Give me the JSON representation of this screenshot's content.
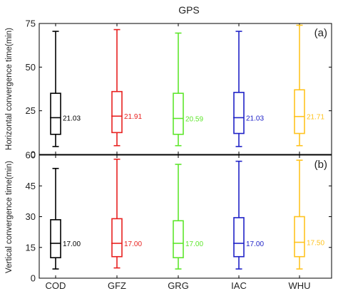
{
  "figure": {
    "title": "GPS"
  },
  "chart_data": [
    {
      "type": "box",
      "panel_label": "(a)",
      "ylabel": "Horizontal convergence time(min)",
      "xlabel": "",
      "ylim": [
        0,
        75
      ],
      "yticks": [
        0,
        25,
        50,
        75
      ],
      "grid": false,
      "legend": "none",
      "categories": [
        "COD",
        "GFZ",
        "GRG",
        "IAC",
        "WHU"
      ],
      "colors": [
        "#000000",
        "#e8211f",
        "#5ee62c",
        "#1f22c7",
        "#ffc31f"
      ],
      "boxes": [
        {
          "whisker_low": 4.5,
          "q1": 11.5,
          "median": 21.03,
          "q3": 35,
          "whisker_high": 70.5,
          "label": "21.03"
        },
        {
          "whisker_low": 5,
          "q1": 12.5,
          "median": 21.91,
          "q3": 36,
          "whisker_high": 71.5,
          "label": "21.91"
        },
        {
          "whisker_low": 5,
          "q1": 11.5,
          "median": 20.59,
          "q3": 35,
          "whisker_high": 69.5,
          "label": "20.59"
        },
        {
          "whisker_low": 4.5,
          "q1": 12,
          "median": 21.03,
          "q3": 35.5,
          "whisker_high": 70.5,
          "label": "21.03"
        },
        {
          "whisker_low": 5,
          "q1": 12,
          "median": 21.71,
          "q3": 37,
          "whisker_high": 74,
          "label": "21.71"
        }
      ]
    },
    {
      "type": "box",
      "panel_label": "(b)",
      "ylabel": "Vertical  convergence time(min)",
      "xlabel": "",
      "ylim": [
        0,
        60
      ],
      "yticks": [
        0,
        15,
        30,
        45,
        60
      ],
      "grid": false,
      "legend": "none",
      "categories": [
        "COD",
        "GFZ",
        "GRG",
        "IAC",
        "WHU"
      ],
      "colors": [
        "#000000",
        "#e8211f",
        "#5ee62c",
        "#1f22c7",
        "#ffc31f"
      ],
      "boxes": [
        {
          "whisker_low": 4.5,
          "q1": 10,
          "median": 17.0,
          "q3": 28.5,
          "whisker_high": 53.5,
          "label": "17.00"
        },
        {
          "whisker_low": 5,
          "q1": 10.5,
          "median": 17.0,
          "q3": 29,
          "whisker_high": 58,
          "label": "17.00"
        },
        {
          "whisker_low": 4.5,
          "q1": 10,
          "median": 17.0,
          "q3": 28,
          "whisker_high": 55.5,
          "label": "17.00"
        },
        {
          "whisker_low": 4.5,
          "q1": 10.5,
          "median": 17.0,
          "q3": 29.5,
          "whisker_high": 57,
          "label": "17.00"
        },
        {
          "whisker_low": 4.5,
          "q1": 10.5,
          "median": 17.5,
          "q3": 30,
          "whisker_high": 57.5,
          "label": "17.50"
        }
      ]
    }
  ]
}
